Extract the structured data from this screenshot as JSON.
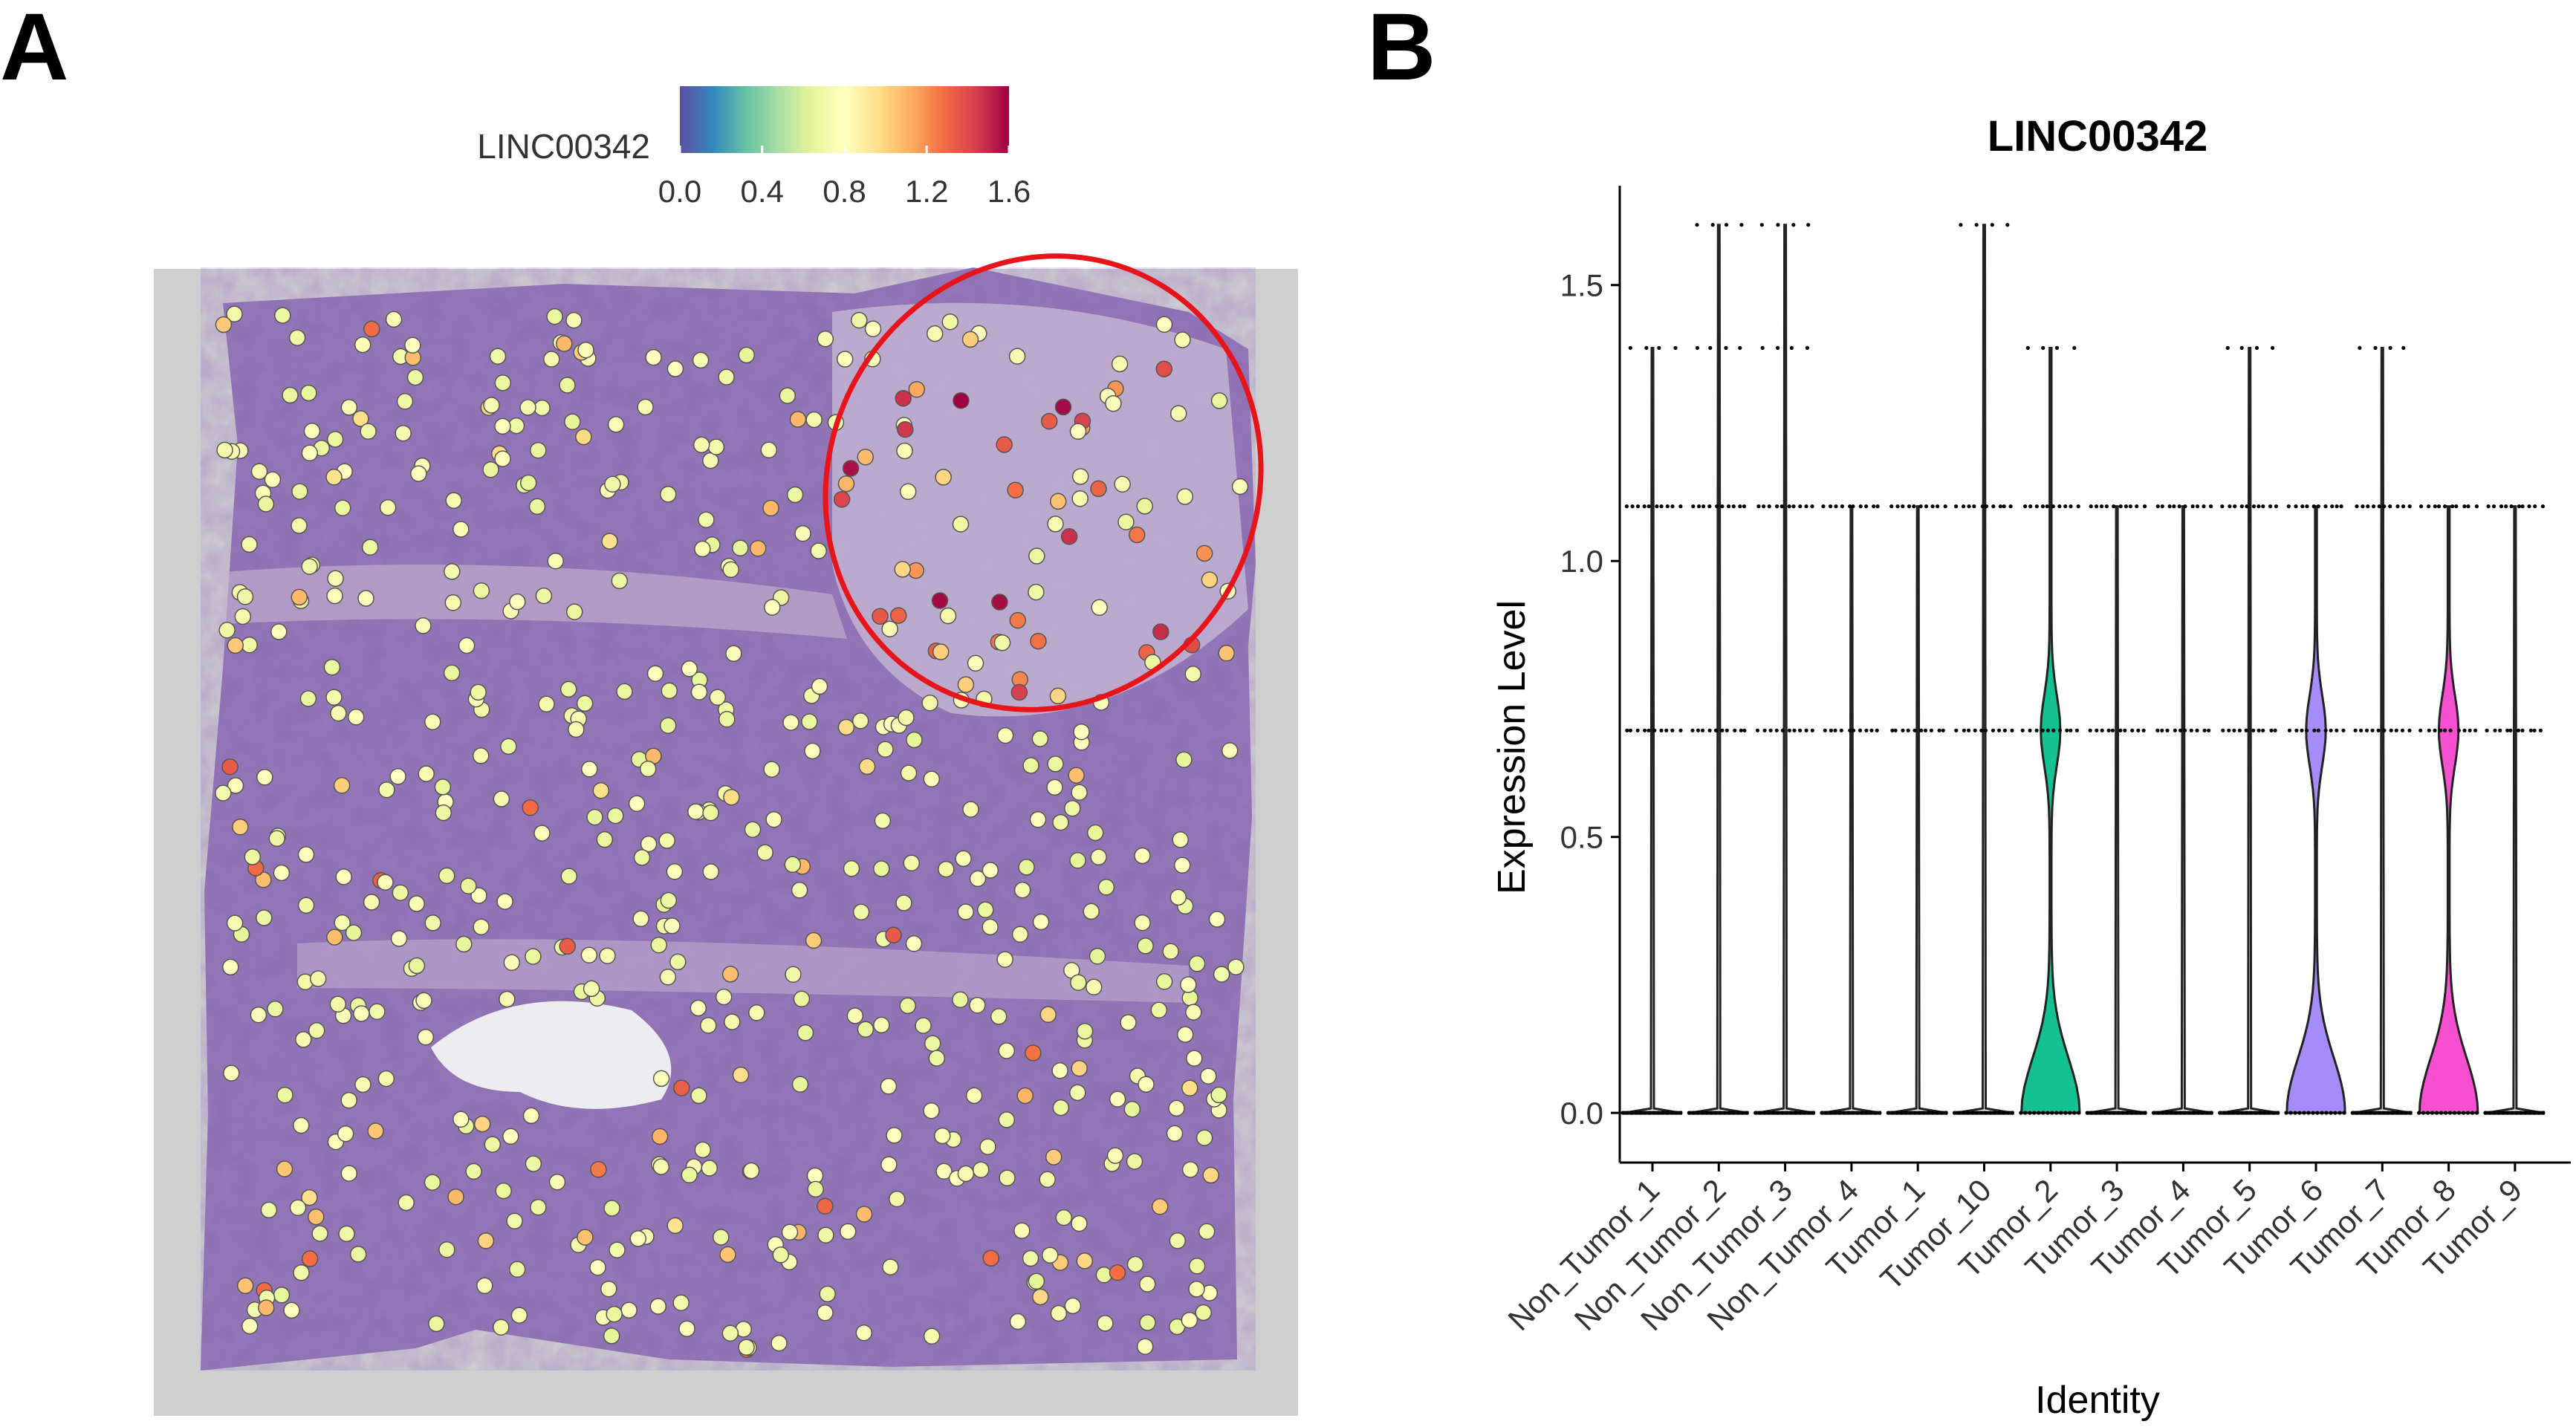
{
  "panels": {
    "a_label": "A",
    "b_label": "B"
  },
  "colors": {
    "accent_circle": "#e8141b",
    "tumor_2": "#13c28f",
    "tumor_6": "#a58cfb",
    "tumor_8": "#f64fd0",
    "tissue_base": "#7e6aa8",
    "background_slide": "#c9c9c9"
  },
  "spatial": {
    "colorbar_label": "LINC00342",
    "colorbar_ticks": [
      "0.0",
      "0.4",
      "0.8",
      "1.2",
      "1.6"
    ],
    "colorbar_range": [
      0,
      1.6
    ],
    "colormap": [
      "#5e4fa2",
      "#3288bd",
      "#66c2a5",
      "#abdda4",
      "#e6f598",
      "#ffffbf",
      "#fee08b",
      "#fdae61",
      "#f46d43",
      "#d53e4f",
      "#9e0142"
    ],
    "highlight": "red ellipse around upper-right stromal region"
  },
  "chart_data": {
    "type": "violin",
    "title": "LINC00342",
    "xlabel": "Identity",
    "ylabel": "Expression Level",
    "ylim": [
      -0.09,
      1.68
    ],
    "yticks": [
      0.0,
      0.5,
      1.0,
      1.5
    ],
    "ytick_labels": [
      "0.0",
      "0.5",
      "1.0",
      "1.5"
    ],
    "categories": [
      "Non_Tumor_1",
      "Non_Tumor_2",
      "Non_Tumor_3",
      "Non_Tumor_4",
      "Tumor_1",
      "Tumor_10",
      "Tumor_2",
      "Tumor_3",
      "Tumor_4",
      "Tumor_5",
      "Tumor_6",
      "Tumor_7",
      "Tumor_8",
      "Tumor_9"
    ],
    "series": [
      {
        "name": "Non_Tumor_1",
        "max": 1.386,
        "points": [
          0.693,
          1.099,
          1.386
        ]
      },
      {
        "name": "Non_Tumor_2",
        "max": 1.609,
        "points": [
          0.693,
          1.099,
          1.386,
          1.609
        ]
      },
      {
        "name": "Non_Tumor_3",
        "max": 1.609,
        "points": [
          0.693,
          1.099,
          1.386,
          1.609
        ]
      },
      {
        "name": "Non_Tumor_4",
        "max": 1.099,
        "points": [
          0.693,
          1.099
        ]
      },
      {
        "name": "Tumor_1",
        "max": 1.099,
        "points": [
          0.693,
          1.099
        ]
      },
      {
        "name": "Tumor_10",
        "max": 1.609,
        "points": [
          0.693,
          1.099,
          1.609
        ]
      },
      {
        "name": "Tumor_2",
        "max": 1.386,
        "points": [
          0.693,
          1.099,
          1.386
        ],
        "density": "bimodal"
      },
      {
        "name": "Tumor_3",
        "max": 1.099,
        "points": [
          0.693,
          1.099
        ]
      },
      {
        "name": "Tumor_4",
        "max": 1.099,
        "points": [
          0.693,
          1.099
        ]
      },
      {
        "name": "Tumor_5",
        "max": 1.386,
        "points": [
          0.693,
          1.099,
          1.386
        ]
      },
      {
        "name": "Tumor_6",
        "max": 1.099,
        "points": [
          0.693,
          1.099
        ],
        "density": "bimodal"
      },
      {
        "name": "Tumor_7",
        "max": 1.386,
        "points": [
          0.693,
          1.099,
          1.386
        ]
      },
      {
        "name": "Tumor_8",
        "max": 1.099,
        "points": [
          0.693,
          1.099
        ],
        "density": "bimodal"
      },
      {
        "name": "Tumor_9",
        "max": 1.099,
        "points": [
          0.693,
          1.099
        ]
      }
    ],
    "grid": false,
    "legend": "none"
  }
}
